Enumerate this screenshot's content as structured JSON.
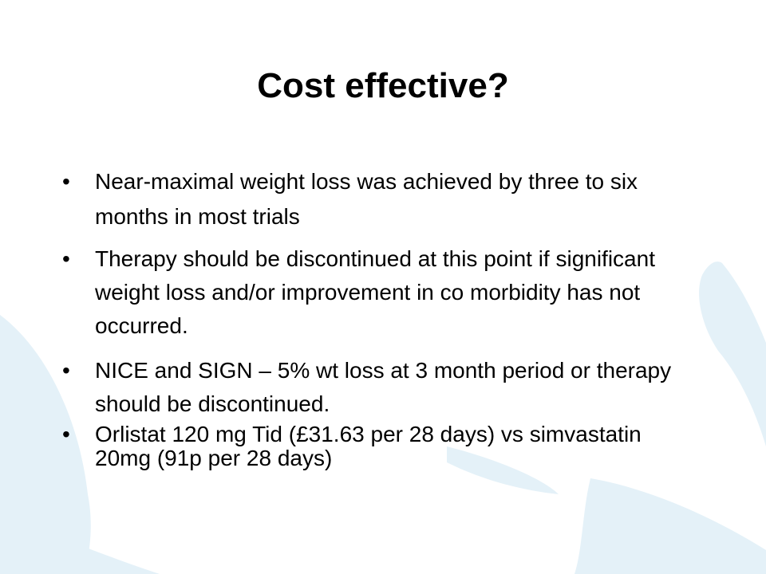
{
  "slide": {
    "title": "Cost effective?",
    "bullet_glyph": "•",
    "bullets": [
      {
        "text": "Near-maximal weight loss was achieved by three to six months in most trials"
      },
      {
        "text": "Therapy should be discontinued at this point if significant weight loss and/or improvement in co morbidity has not occurred."
      },
      {
        "text": "NICE and SIGN – 5% wt loss at 3 month period or therapy should be discontinued."
      },
      {
        "text": "Orlistat 120 mg Tid (£31.63 per 28 days) vs simvastatin 20mg (91p per 28 days)"
      }
    ]
  },
  "colors": {
    "background": "#ffffff",
    "decoration": "#e4f1f8",
    "text": "#000000"
  }
}
